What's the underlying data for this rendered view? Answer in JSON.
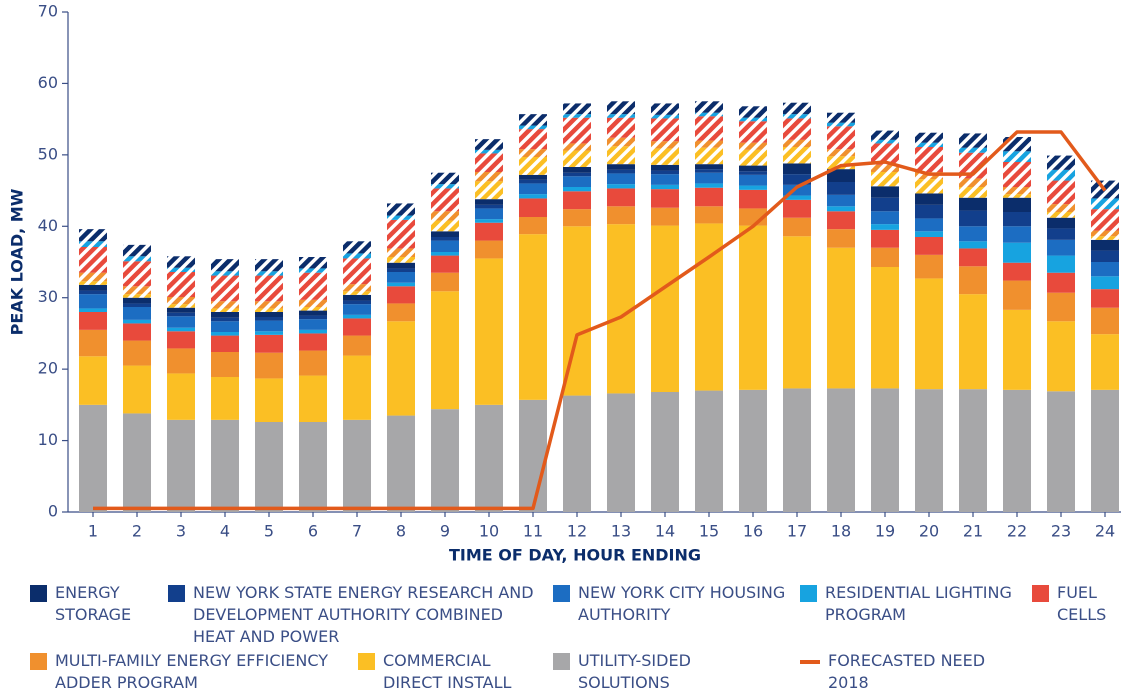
{
  "chart_data": {
    "type": "bar",
    "stacked": true,
    "xlabel": "TIME OF DAY, HOUR ENDING",
    "ylabel": "PEAK LOAD, MW",
    "categories": [
      "1",
      "2",
      "3",
      "4",
      "5",
      "6",
      "7",
      "8",
      "9",
      "10",
      "11",
      "12",
      "13",
      "14",
      "15",
      "16",
      "17",
      "18",
      "19",
      "20",
      "21",
      "22",
      "23",
      "24"
    ],
    "ylim": [
      0,
      70
    ],
    "yticks": [
      0,
      10,
      20,
      30,
      40,
      50,
      60,
      70
    ],
    "grid": false,
    "series": [
      {
        "name": "ENERGY STORAGE",
        "color": "#0b2d6b",
        "values": [
          0.8,
          0.8,
          0.7,
          0.8,
          0.7,
          0.7,
          0.8,
          0.8,
          0.8,
          0.8,
          0.7,
          0.8,
          0.8,
          0.8,
          0.7,
          0.8,
          1.5,
          1.8,
          1.6,
          1.6,
          1.8,
          2,
          1.5,
          1.5
        ],
        "hatched_values": [
          1.7,
          1.6,
          1.6,
          1.7,
          1.7,
          1.6,
          1.7,
          1.7,
          1.6,
          1.5,
          1.6,
          1.5,
          1.8,
          1.6,
          1.6,
          1.6,
          1.6,
          1.4,
          1.3,
          1.4,
          2,
          2,
          2,
          2.5
        ]
      },
      {
        "name": "NEW YORK STATE ENERGY RESEARCH AND DEVELOPMENT AUTHORITY COMBINED HEAT AND POWER",
        "color": "#123f8c",
        "values": [
          0.5,
          0.5,
          0.5,
          0.5,
          0.5,
          0.5,
          0.5,
          0.5,
          0.5,
          0.5,
          0.5,
          0.5,
          0.5,
          0.5,
          0.5,
          0.5,
          1.5,
          1.8,
          1.9,
          1.9,
          2.2,
          2,
          1.6,
          1.6
        ]
      },
      {
        "name": "NEW YORK CITY HOUSING AUTHORITY",
        "color": "#1c6dc2",
        "values": [
          2,
          1.8,
          1.6,
          1.5,
          1.5,
          1.5,
          1.5,
          1.5,
          1.6,
          1.5,
          1.5,
          1.5,
          1.5,
          1.5,
          1.5,
          1.5,
          1.5,
          1.6,
          1.8,
          1.8,
          2.1,
          2.3,
          2.2,
          2
        ]
      },
      {
        "name": "RESIDENTIAL LIGHTING PROGRAM",
        "color": "#17a3e0",
        "values": [
          0.5,
          0.5,
          0.5,
          0.5,
          0.5,
          0.5,
          0.5,
          0.5,
          0.5,
          0.5,
          0.6,
          0.6,
          0.6,
          0.6,
          0.6,
          0.6,
          0.6,
          0.7,
          0.8,
          0.8,
          1,
          2.8,
          2.4,
          1.8
        ],
        "hatched_values": [
          0.8,
          0.7,
          0.6,
          0.6,
          0.6,
          0.6,
          0.7,
          0.6,
          0.6,
          0.5,
          0.5,
          0.5,
          0.5,
          0.5,
          0.5,
          0.5,
          0.6,
          0.5,
          0.5,
          0.6,
          0.7,
          1.5,
          1.5,
          1.5
        ]
      },
      {
        "name": "FUEL CELLS",
        "color": "#e84a3c",
        "values": [
          2.5,
          2.4,
          2.4,
          2.3,
          2.5,
          2.4,
          2.4,
          2.4,
          2.4,
          2.5,
          2.6,
          2.5,
          2.5,
          2.6,
          2.6,
          2.6,
          2.5,
          2.5,
          2.5,
          2.5,
          2.5,
          2.5,
          2.8,
          2.6
        ],
        "hatched_values": [
          3.6,
          3.5,
          3.5,
          3.6,
          3.6,
          3.8,
          3.6,
          4,
          3.2,
          2.6,
          2.8,
          3.6,
          2.8,
          3.2,
          3.4,
          3,
          3,
          3.2,
          3,
          3.5,
          3.6,
          3.5,
          3.3,
          3
        ]
      },
      {
        "name": "MULTI-FAMILY ENERGY EFFICIENCY ADDER PROGRAM",
        "color": "#f0902e",
        "values": [
          3.7,
          3.5,
          3.5,
          3.5,
          3.6,
          3.5,
          2.8,
          2.5,
          2.6,
          2.5,
          2.4,
          2.4,
          2.5,
          2.5,
          2.4,
          2.4,
          2.6,
          2.6,
          2.7,
          3.3,
          3.9,
          4.1,
          4,
          3.7
        ],
        "hatched_values": [
          1.2,
          1.1,
          1,
          1,
          1,
          1,
          1,
          1.2,
          1.3,
          1.3,
          1.1,
          1,
          1.2,
          1,
          1,
          1,
          1,
          1,
          1,
          1,
          1.2,
          1,
          1.1,
          0.8
        ]
      },
      {
        "name": "COMMERCIAL DIRECT INSTALL",
        "color": "#fbbf24",
        "values": [
          6.8,
          6.7,
          6.5,
          6,
          6.1,
          6.5,
          9,
          13.2,
          16.5,
          20.5,
          23.2,
          23.7,
          23.7,
          23.3,
          23.4,
          23,
          21.3,
          19.7,
          17,
          15.5,
          13.3,
          11.2,
          9.8,
          7.8
        ],
        "hatched_values": [
          0.5,
          0.5,
          0.5,
          0.5,
          0.5,
          0.5,
          0.5,
          0.8,
          1.5,
          2.5,
          2.5,
          2.3,
          2.5,
          2.3,
          2.3,
          2.2,
          2.3,
          1.8,
          2,
          2,
          1.5,
          0.5,
          0.8,
          0.5
        ]
      },
      {
        "name": "UTILITY-SIDED SOLUTIONS",
        "color": "#a7a7a9",
        "values": [
          15,
          13.8,
          12.9,
          12.9,
          12.6,
          12.6,
          12.9,
          13.5,
          14.4,
          15,
          15.7,
          16.3,
          16.6,
          16.8,
          17,
          17.1,
          17.3,
          17.3,
          17.3,
          17.2,
          17.2,
          17.1,
          16.9,
          17.1
        ]
      },
      {
        "name": "FORECASTED NEED 2018",
        "color": "#e25a1b",
        "type": "line",
        "values": [
          0.5,
          0.5,
          0.5,
          0.5,
          0.5,
          0.5,
          0.5,
          0.5,
          0.5,
          0.5,
          0.5,
          24.8,
          27.3,
          31.5,
          35.7,
          40,
          45.5,
          48.5,
          49,
          47.3,
          47.3,
          53.2,
          53.2,
          45
        ]
      }
    ]
  }
}
